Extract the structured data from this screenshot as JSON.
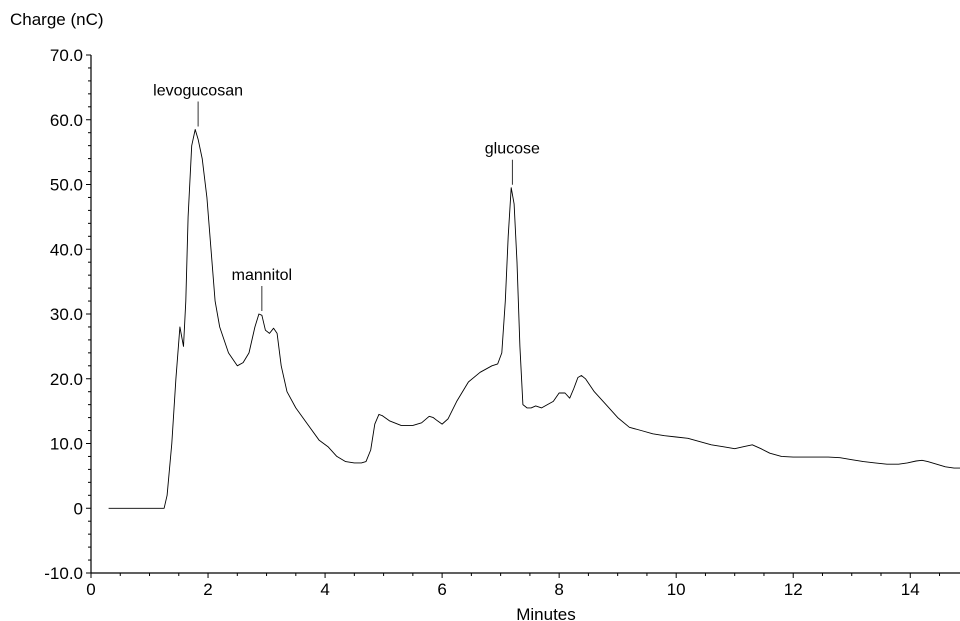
{
  "chart_data": {
    "type": "line",
    "title": "",
    "ylabel": "Charge (nC)",
    "xlabel": "Minutes",
    "xlim": [
      0,
      14.85
    ],
    "ylim": [
      -10,
      70
    ],
    "x_ticks": [
      "0",
      "2",
      "4",
      "6",
      "8",
      "10",
      "12",
      "14"
    ],
    "x_tick_values": [
      0,
      2,
      4,
      6,
      8,
      10,
      12,
      14
    ],
    "y_ticks": [
      "-10.0",
      "0",
      "10.0",
      "20.0",
      "30.0",
      "40.0",
      "50.0",
      "60.0",
      "70.0"
    ],
    "y_tick_values": [
      -10,
      0,
      10,
      20,
      30,
      40,
      50,
      60,
      70
    ],
    "grid": false,
    "legend": "none",
    "line_color": "#000000",
    "series": [
      {
        "x": [
          0.3,
          1.25,
          1.3,
          1.38,
          1.45,
          1.52,
          1.58,
          1.62,
          1.66,
          1.72,
          1.78,
          1.83,
          1.9,
          1.98,
          2.05,
          2.12,
          2.2,
          2.35,
          2.5,
          2.6,
          2.7,
          2.8,
          2.87,
          2.92,
          2.98,
          3.05,
          3.12,
          3.18,
          3.25,
          3.35,
          3.5,
          3.7,
          3.9,
          4.05,
          4.2,
          4.35,
          4.5,
          4.62,
          4.7,
          4.78,
          4.85,
          4.92,
          4.98,
          5.1,
          5.3,
          5.5,
          5.65,
          5.78,
          5.85,
          5.92,
          6.0,
          6.1,
          6.25,
          6.45,
          6.65,
          6.85,
          6.95,
          7.02,
          7.08,
          7.13,
          7.18,
          7.23,
          7.28,
          7.33,
          7.38,
          7.45,
          7.52,
          7.6,
          7.7,
          7.8,
          7.9,
          8.0,
          8.1,
          8.18,
          8.25,
          8.32,
          8.38,
          8.45,
          8.6,
          8.8,
          9.0,
          9.2,
          9.4,
          9.6,
          9.8,
          10.0,
          10.2,
          10.4,
          10.6,
          10.8,
          11.0,
          11.15,
          11.3,
          11.45,
          11.6,
          11.8,
          12.0,
          12.2,
          12.4,
          12.6,
          12.8,
          13.0,
          13.2,
          13.4,
          13.6,
          13.8,
          13.95,
          14.1,
          14.2,
          14.3,
          14.45,
          14.6,
          14.75,
          14.85
        ],
        "y": [
          0,
          0,
          2,
          10,
          20,
          28,
          25,
          32,
          45,
          56,
          58.5,
          57,
          54,
          48,
          40,
          32,
          28,
          24,
          22,
          22.5,
          24,
          28,
          30,
          29.8,
          27.5,
          27,
          27.8,
          27,
          22,
          18,
          15.5,
          13,
          10.5,
          9.5,
          8,
          7.2,
          7,
          7,
          7.2,
          9,
          13,
          14.5,
          14.3,
          13.5,
          12.8,
          12.8,
          13.2,
          14.2,
          14,
          13.5,
          13,
          13.8,
          16.5,
          19.5,
          21,
          22,
          22.3,
          24,
          32,
          42,
          49.5,
          47,
          38,
          25,
          16,
          15.5,
          15.5,
          15.8,
          15.5,
          16,
          16.5,
          17.8,
          17.8,
          17,
          18.5,
          20.2,
          20.5,
          20,
          18,
          16,
          14,
          12.5,
          12,
          11.5,
          11.2,
          11,
          10.8,
          10.3,
          9.8,
          9.5,
          9.2,
          9.5,
          9.8,
          9.2,
          8.5,
          8,
          7.9,
          7.9,
          7.9,
          7.9,
          7.8,
          7.5,
          7.2,
          7,
          6.8,
          6.8,
          7,
          7.3,
          7.4,
          7.2,
          6.8,
          6.4,
          6.2,
          6.2
        ]
      }
    ],
    "annotations": [
      {
        "text": "levogucosan",
        "x": 1.83,
        "y": 58.5
      },
      {
        "text": "mannitol",
        "x": 2.92,
        "y": 30
      },
      {
        "text": "glucose",
        "x": 7.2,
        "y": 49.5
      }
    ]
  }
}
